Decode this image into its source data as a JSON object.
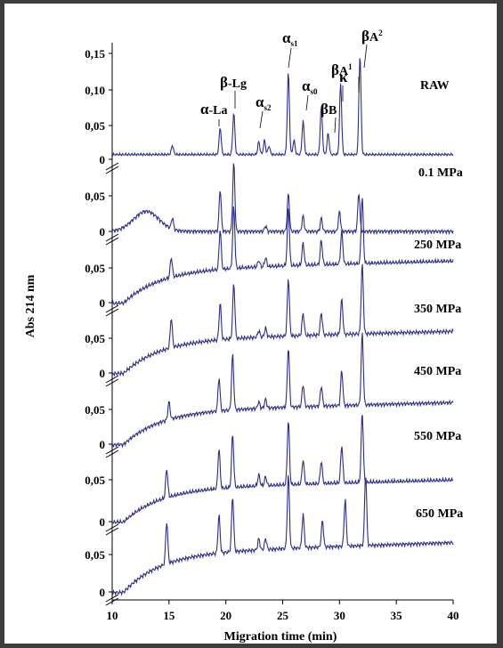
{
  "chart_data": {
    "type": "line",
    "xlabel": "Migration time (min)",
    "ylabel": "Abs 214 nm",
    "xlim": [
      10,
      40
    ],
    "x_ticks": [
      "10",
      "15",
      "20",
      "25",
      "30",
      "35",
      "40"
    ],
    "y_tick_labels": {
      "raw": [
        "0,15",
        "0,10",
        "0,05",
        "0"
      ],
      "others": [
        "0,05",
        "0"
      ]
    },
    "series": [
      {
        "name": "RAW",
        "baseline": 0.008,
        "drift": 0.0,
        "hump": 0.0,
        "slope": 0.0,
        "peaks": [
          [
            15.3,
            0.013
          ],
          [
            19.5,
            0.038
          ],
          [
            20.7,
            0.058
          ],
          [
            22.9,
            0.018
          ],
          [
            23.4,
            0.02
          ],
          [
            23.8,
            0.012
          ],
          [
            25.5,
            0.115
          ],
          [
            26.0,
            0.02
          ],
          [
            26.8,
            0.047
          ],
          [
            28.4,
            0.068
          ],
          [
            29.0,
            0.03
          ],
          [
            30.1,
            0.1
          ],
          [
            31.8,
            0.14
          ]
        ]
      },
      {
        "name": "0.1 MPa",
        "baseline": 0.0,
        "drift": 0.0,
        "hump": 0.018,
        "slope": 0.0,
        "peaks": [
          [
            15.3,
            0.01
          ],
          [
            19.5,
            0.038
          ],
          [
            20.7,
            0.062
          ],
          [
            23.5,
            0.005
          ],
          [
            25.5,
            0.034
          ],
          [
            26.8,
            0.014
          ],
          [
            28.4,
            0.012
          ],
          [
            30.0,
            0.018
          ],
          [
            31.7,
            0.035
          ]
        ]
      },
      {
        "name": "250 MPa",
        "baseline": 0.0,
        "drift": 0.008,
        "hump": 0.0,
        "slope": 0.03,
        "peaks": [
          [
            15.2,
            0.018
          ],
          [
            19.5,
            0.036
          ],
          [
            20.7,
            0.055
          ],
          [
            22.9,
            0.006
          ],
          [
            23.5,
            0.008
          ],
          [
            25.5,
            0.052
          ],
          [
            26.8,
            0.02
          ],
          [
            28.4,
            0.022
          ],
          [
            30.2,
            0.03
          ],
          [
            32.0,
            0.06
          ]
        ]
      },
      {
        "name": "350 MPa",
        "baseline": 0.0,
        "drift": 0.008,
        "hump": 0.0,
        "slope": 0.03,
        "peaks": [
          [
            15.2,
            0.027
          ],
          [
            19.5,
            0.033
          ],
          [
            20.7,
            0.05
          ],
          [
            22.9,
            0.006
          ],
          [
            23.5,
            0.008
          ],
          [
            25.5,
            0.052
          ],
          [
            26.8,
            0.02
          ],
          [
            28.4,
            0.02
          ],
          [
            30.2,
            0.032
          ],
          [
            32.0,
            0.063
          ]
        ]
      },
      {
        "name": "450 MPa",
        "baseline": 0.0,
        "drift": 0.008,
        "hump": 0.0,
        "slope": 0.03,
        "peaks": [
          [
            15.0,
            0.016
          ],
          [
            19.4,
            0.03
          ],
          [
            20.6,
            0.05
          ],
          [
            22.9,
            0.006
          ],
          [
            23.5,
            0.008
          ],
          [
            25.5,
            0.054
          ],
          [
            26.8,
            0.02
          ],
          [
            28.4,
            0.018
          ],
          [
            30.2,
            0.032
          ],
          [
            32.0,
            0.065
          ]
        ]
      },
      {
        "name": "550 MPa",
        "baseline": 0.0,
        "drift": 0.008,
        "hump": 0.0,
        "slope": 0.03,
        "peaks": [
          [
            14.8,
            0.026
          ],
          [
            19.4,
            0.036
          ],
          [
            20.6,
            0.048
          ],
          [
            22.9,
            0.01
          ],
          [
            23.5,
            0.008
          ],
          [
            25.5,
            0.058
          ],
          [
            26.8,
            0.022
          ],
          [
            28.4,
            0.02
          ],
          [
            30.2,
            0.034
          ],
          [
            32.0,
            0.063
          ]
        ]
      },
      {
        "name": "650 MPa",
        "baseline": 0.0,
        "drift": 0.01,
        "hump": 0.0,
        "slope": 0.035,
        "peaks": [
          [
            14.8,
            0.038
          ],
          [
            19.4,
            0.034
          ],
          [
            20.6,
            0.05
          ],
          [
            22.9,
            0.01
          ],
          [
            23.5,
            0.01
          ],
          [
            25.5,
            0.066
          ],
          [
            26.8,
            0.03
          ],
          [
            28.5,
            0.024
          ],
          [
            30.5,
            0.042
          ],
          [
            32.3,
            0.064
          ]
        ]
      }
    ],
    "annotations": [
      {
        "greek": "α",
        "text": "-La",
        "sub": "",
        "sup": ""
      },
      {
        "greek": "β",
        "text": "-Lg",
        "sub": "",
        "sup": ""
      },
      {
        "greek": "α",
        "text": "",
        "sub": "s2",
        "sup": ""
      },
      {
        "greek": "α",
        "text": "",
        "sub": "s1",
        "sup": ""
      },
      {
        "greek": "α",
        "text": "",
        "sub": "s0",
        "sup": ""
      },
      {
        "greek": "κ",
        "text": "",
        "sub": "",
        "sup": ""
      },
      {
        "greek": "β",
        "text": "B",
        "sub": "",
        "sup": ""
      },
      {
        "greek": "β",
        "text": "A",
        "sub": "",
        "sup": "1"
      },
      {
        "greek": "β",
        "text": "A",
        "sub": "",
        "sup": "2"
      }
    ],
    "colors": {
      "trace": "#2c2c8c",
      "frame": "#3d3d3d",
      "background": "#ffffff"
    }
  }
}
